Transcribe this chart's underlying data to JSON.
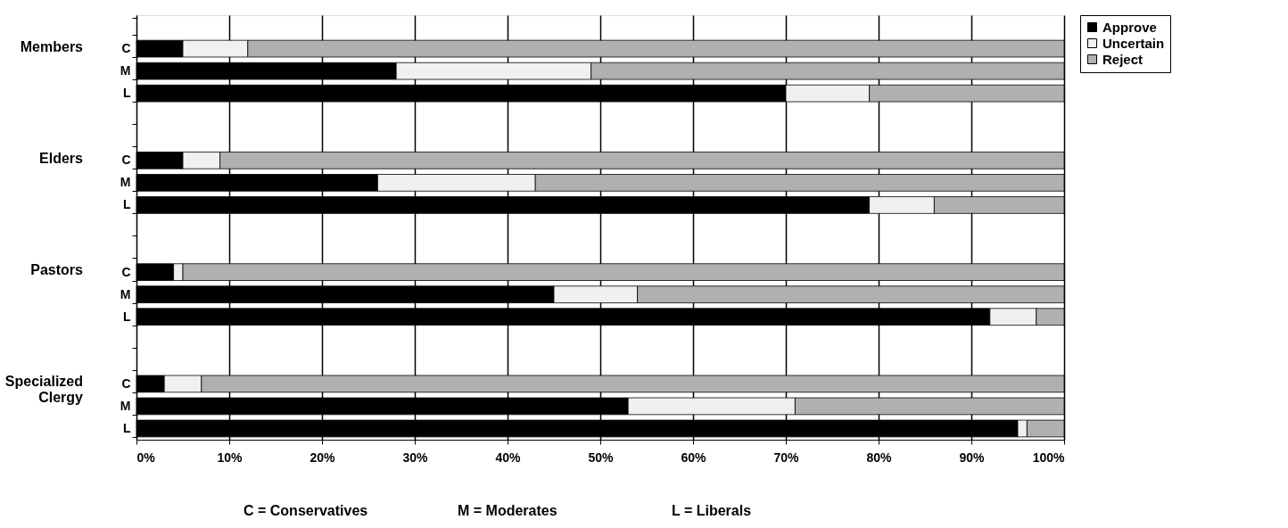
{
  "chart_data": {
    "type": "bar",
    "orientation": "horizontal",
    "stacked": true,
    "categories": [
      null,
      "C",
      "M",
      "L",
      null,
      null,
      "C",
      "M",
      "L",
      null,
      null,
      "C",
      "M",
      "L",
      null,
      null,
      "C",
      "M",
      "L"
    ],
    "series": [
      {
        "name": "Approve",
        "color": "#000000",
        "values": [
          null,
          5,
          28,
          70,
          null,
          null,
          5,
          26,
          79,
          null,
          null,
          4,
          45,
          92,
          null,
          null,
          3,
          53,
          95
        ]
      },
      {
        "name": "Uncertain",
        "color": "#f0f0f0",
        "values": [
          null,
          7,
          21,
          9,
          null,
          null,
          4,
          17,
          7,
          null,
          null,
          1,
          9,
          5,
          null,
          null,
          4,
          18,
          1
        ]
      },
      {
        "name": "Reject",
        "color": "#b0b0b0",
        "values": [
          null,
          88,
          51,
          21,
          null,
          null,
          91,
          57,
          14,
          null,
          null,
          95,
          46,
          3,
          null,
          null,
          93,
          29,
          4
        ]
      }
    ],
    "xlim": [
      0,
      100
    ],
    "xticks": [
      {
        "value": 0,
        "label": "0%"
      },
      {
        "value": 10,
        "label": "10%"
      },
      {
        "value": 20,
        "label": "20%"
      },
      {
        "value": 30,
        "label": "30%"
      },
      {
        "value": 40,
        "label": "40%"
      },
      {
        "value": 50,
        "label": "50%"
      },
      {
        "value": 60,
        "label": "60%"
      },
      {
        "value": 70,
        "label": "70%"
      },
      {
        "value": 80,
        "label": "80%"
      },
      {
        "value": 90,
        "label": "90%"
      },
      {
        "value": 100,
        "label": "100%"
      }
    ],
    "grid": "x",
    "legend": "right",
    "annotations": [
      "Members",
      "Elders",
      "Pastors",
      "Specialized Clergy",
      "C = Conservatives",
      "M = Moderates",
      "L = Liberals"
    ]
  }
}
